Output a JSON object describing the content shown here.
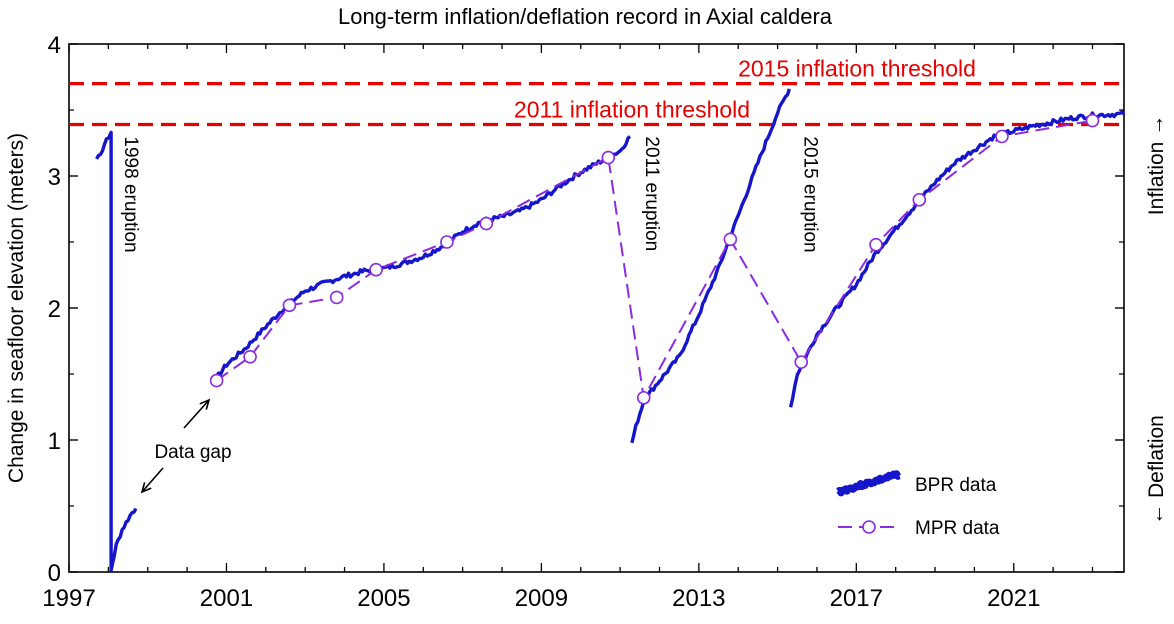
{
  "chart_data": {
    "type": "line",
    "title": "Long-term inflation/deflation record in Axial caldera",
    "ylabel": "Change in seafloor elevation (meters)",
    "xlabel": "",
    "xlim": [
      1997,
      2023.8
    ],
    "ylim": [
      0,
      4
    ],
    "x_ticks": [
      1997,
      2001,
      2005,
      2009,
      2013,
      2017,
      2021
    ],
    "y_ticks": [
      0,
      1,
      2,
      3,
      4
    ],
    "grid": false,
    "right_labels": {
      "inflation": "Inflation →",
      "deflation": "← Deflation"
    },
    "thresholds": [
      {
        "label": "2015 inflation threshold",
        "y": 3.7,
        "color": "#e60000"
      },
      {
        "label": "2011 inflation threshold",
        "y": 3.39,
        "color": "#e60000"
      }
    ],
    "eruptions": [
      {
        "label": "1998 eruption",
        "x": 1998.07
      },
      {
        "label": "2011 eruption",
        "x": 2011.3
      },
      {
        "label": "2015 eruption",
        "x": 2015.33
      }
    ],
    "annotations": [
      {
        "text": "Data gap"
      }
    ],
    "legend": {
      "position": "bottom-right",
      "bpr_label": "BPR data",
      "mpr_label": "MPR data"
    },
    "series": [
      {
        "name": "BPR data",
        "color": "#1515cc",
        "segments": [
          [
            [
              1997.7,
              3.13
            ],
            [
              1997.85,
              3.2
            ],
            [
              1997.95,
              3.28
            ],
            [
              1998.07,
              3.33
            ],
            [
              1998.07,
              0.0
            ],
            [
              1998.1,
              0.06
            ],
            [
              1998.2,
              0.2
            ],
            [
              1998.35,
              0.32
            ],
            [
              1998.5,
              0.4
            ],
            [
              1998.6,
              0.45
            ],
            [
              1998.7,
              0.48
            ]
          ],
          [
            [
              2000.7,
              1.45
            ],
            [
              2001.0,
              1.57
            ],
            [
              2001.5,
              1.7
            ],
            [
              2002.0,
              1.86
            ],
            [
              2002.5,
              2.01
            ],
            [
              2003.0,
              2.13
            ],
            [
              2003.5,
              2.19
            ],
            [
              2004.0,
              2.24
            ],
            [
              2004.5,
              2.28
            ],
            [
              2005.0,
              2.3
            ],
            [
              2005.5,
              2.34
            ],
            [
              2006.0,
              2.39
            ],
            [
              2006.5,
              2.47
            ],
            [
              2007.0,
              2.58
            ],
            [
              2007.5,
              2.66
            ],
            [
              2008.0,
              2.69
            ],
            [
              2008.5,
              2.74
            ],
            [
              2009.0,
              2.82
            ],
            [
              2009.5,
              2.93
            ],
            [
              2010.0,
              3.03
            ],
            [
              2010.5,
              3.11
            ],
            [
              2011.0,
              3.19
            ],
            [
              2011.25,
              3.3
            ]
          ],
          [
            [
              2011.3,
              0.98
            ],
            [
              2011.4,
              1.1
            ],
            [
              2011.6,
              1.3
            ],
            [
              2012.0,
              1.45
            ],
            [
              2012.5,
              1.63
            ],
            [
              2013.0,
              1.95
            ],
            [
              2013.5,
              2.3
            ],
            [
              2014.0,
              2.7
            ],
            [
              2014.5,
              3.1
            ],
            [
              2015.0,
              3.48
            ],
            [
              2015.3,
              3.66
            ]
          ],
          [
            [
              2015.33,
              1.25
            ],
            [
              2015.5,
              1.5
            ],
            [
              2016.0,
              1.8
            ],
            [
              2016.5,
              2.0
            ],
            [
              2017.0,
              2.18
            ],
            [
              2017.5,
              2.42
            ],
            [
              2018.0,
              2.6
            ],
            [
              2018.5,
              2.78
            ],
            [
              2019.0,
              2.95
            ],
            [
              2019.5,
              3.1
            ],
            [
              2020.0,
              3.2
            ],
            [
              2020.5,
              3.3
            ],
            [
              2021.0,
              3.34
            ],
            [
              2021.5,
              3.38
            ],
            [
              2022.0,
              3.41
            ],
            [
              2022.5,
              3.44
            ],
            [
              2023.0,
              3.46
            ],
            [
              2023.8,
              3.47
            ]
          ]
        ]
      },
      {
        "name": "MPR data",
        "color": "#8a2be2",
        "points": [
          [
            2000.75,
            1.45
          ],
          [
            2001.6,
            1.63
          ],
          [
            2002.6,
            2.02
          ],
          [
            2003.8,
            2.08
          ],
          [
            2004.8,
            2.29
          ],
          [
            2006.6,
            2.5
          ],
          [
            2007.6,
            2.64
          ],
          [
            2010.7,
            3.14
          ],
          [
            2011.6,
            1.32
          ],
          [
            2013.8,
            2.52
          ],
          [
            2015.6,
            1.59
          ],
          [
            2017.5,
            2.48
          ],
          [
            2018.6,
            2.82
          ],
          [
            2020.7,
            3.3
          ],
          [
            2023.0,
            3.42
          ]
        ]
      }
    ]
  }
}
